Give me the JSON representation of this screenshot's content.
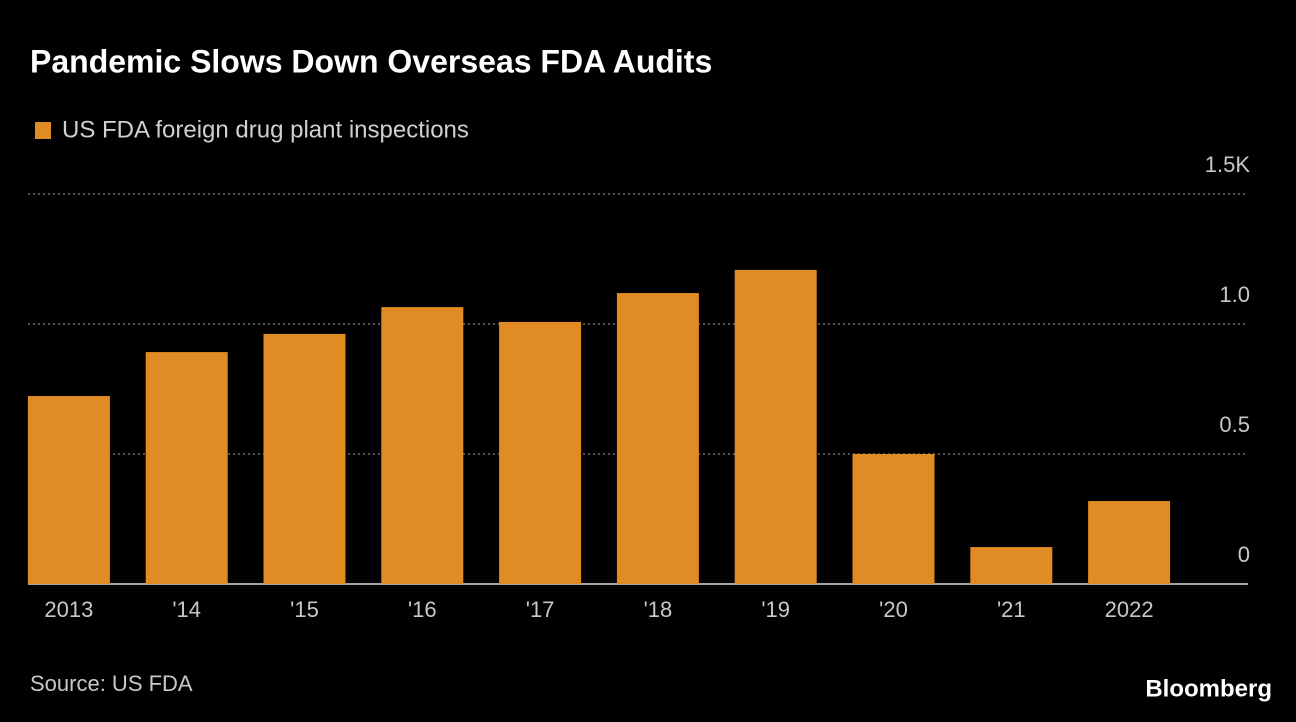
{
  "chart_data": {
    "type": "bar",
    "title": "Pandemic Slows Down Overseas FDA Audits",
    "categories": [
      "2013",
      "'14",
      "'15",
      "'16",
      "'17",
      "'18",
      "'19",
      "'20",
      "'21",
      "2022"
    ],
    "series": [
      {
        "name": "US FDA foreign drug plant inspections",
        "color": "#e08b24",
        "values": [
          0.723,
          0.892,
          0.962,
          1.065,
          1.008,
          1.119,
          1.208,
          0.5,
          0.142,
          0.319
        ]
      }
    ],
    "ylim": [
      0,
      1.5
    ],
    "yticks": [
      {
        "value": 1.5,
        "label": "1.5K"
      },
      {
        "value": 1,
        "label": "1.0"
      },
      0.5,
      0
    ],
    "grid": true,
    "source": "Source: US FDA",
    "brand": "Bloomberg"
  }
}
